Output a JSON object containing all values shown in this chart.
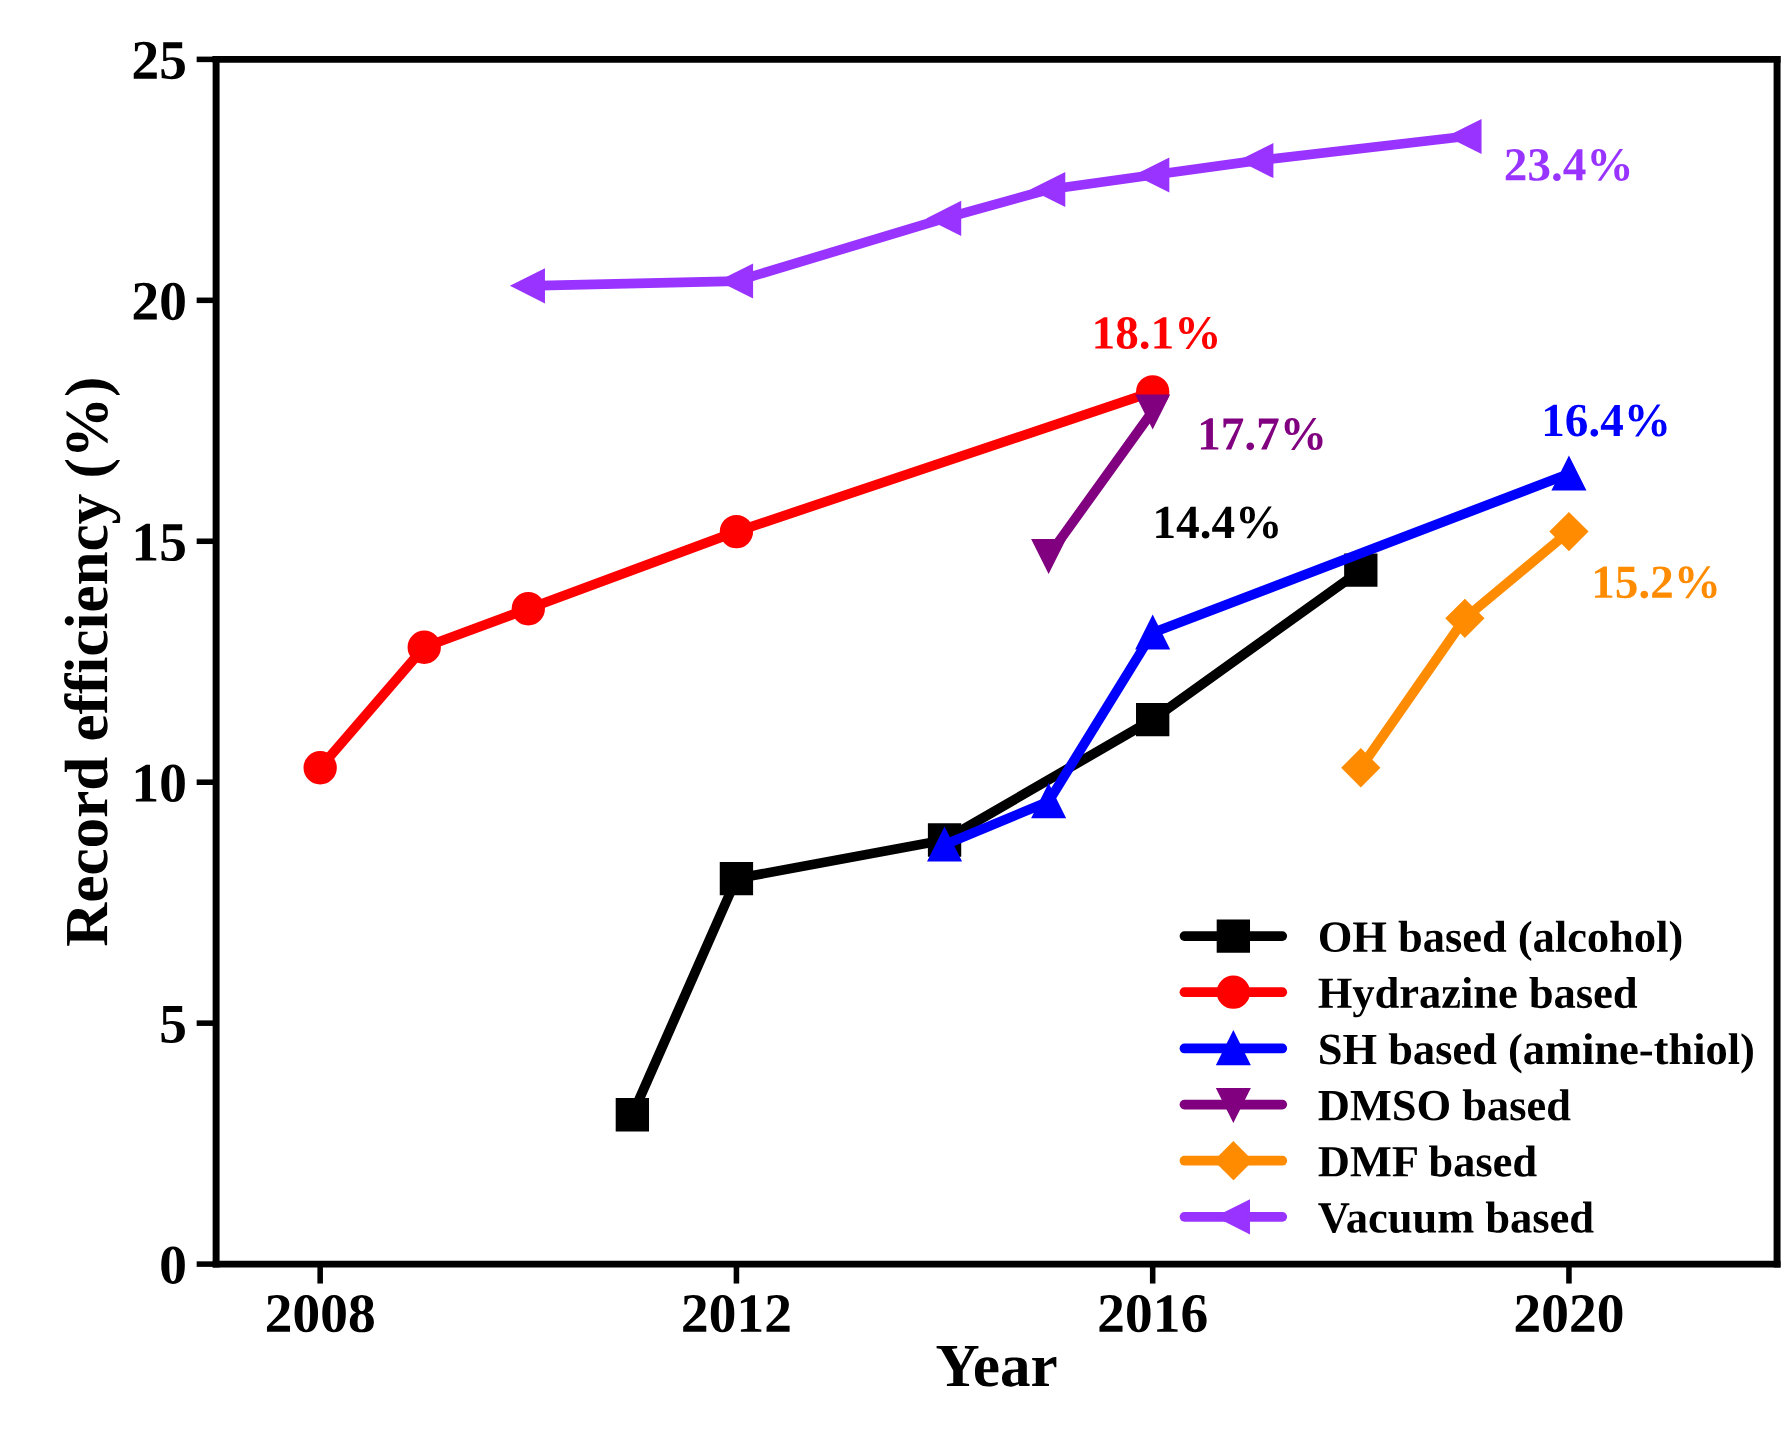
{
  "chart_data": {
    "type": "line",
    "xlabel": "Year",
    "ylabel": "Record efficiency (%)",
    "xlim": [
      2007,
      2022
    ],
    "xticks": [
      2008,
      2012,
      2016,
      2020
    ],
    "ylim": [
      0,
      25
    ],
    "yticks": [
      0,
      5,
      10,
      15,
      20,
      25
    ],
    "grid": false,
    "legend": "bottom right",
    "line_style": "solid",
    "series": [
      {
        "name": "OH based (alcohol)",
        "color": "#000000",
        "marker": "square",
        "x": [
          2011,
          2012,
          2014,
          2016,
          2018
        ],
        "values": [
          3.1,
          8.0,
          8.8,
          11.3,
          14.4
        ]
      },
      {
        "name": "Hydrazine based",
        "color": "#ff0000",
        "marker": "circle",
        "x": [
          2008,
          2009,
          2010,
          2012,
          2016
        ],
        "values": [
          10.3,
          12.8,
          13.6,
          15.2,
          18.1
        ]
      },
      {
        "name": "SH based (amine-thiol)",
        "color": "#0000ff",
        "marker": "triangle",
        "x": [
          2014,
          2015,
          2016,
          2020
        ],
        "values": [
          8.7,
          9.6,
          13.1,
          16.4
        ]
      },
      {
        "name": "DMSO based",
        "color": "#800080",
        "marker": "triangle_down",
        "x": [
          2015,
          2016
        ],
        "values": [
          14.7,
          17.7
        ]
      },
      {
        "name": "DMF based",
        "color": "#ff8c00",
        "marker": "diamond",
        "x": [
          2018,
          2019,
          2020
        ],
        "values": [
          10.3,
          13.4,
          15.2
        ]
      },
      {
        "name": "Vacuum based",
        "color": "#9933ff",
        "marker": "triangle_left",
        "x": [
          2010,
          2012,
          2014,
          2015,
          2016,
          2017,
          2019
        ],
        "values": [
          20.3,
          20.4,
          21.7,
          22.3,
          22.6,
          22.9,
          23.4
        ]
      }
    ],
    "annotations": [
      {
        "text": "14.4%",
        "x": 2018,
        "y": 14.4
      },
      {
        "text": "18.1%",
        "x": 2016,
        "y": 18.1
      },
      {
        "text": "16.4%",
        "x": 2020,
        "y": 16.4
      },
      {
        "text": "17.7%",
        "x": 2016,
        "y": 17.7
      },
      {
        "text": "15.2%",
        "x": 2020,
        "y": 15.2
      },
      {
        "text": "23.4%",
        "x": 2019,
        "y": 23.4
      }
    ]
  }
}
